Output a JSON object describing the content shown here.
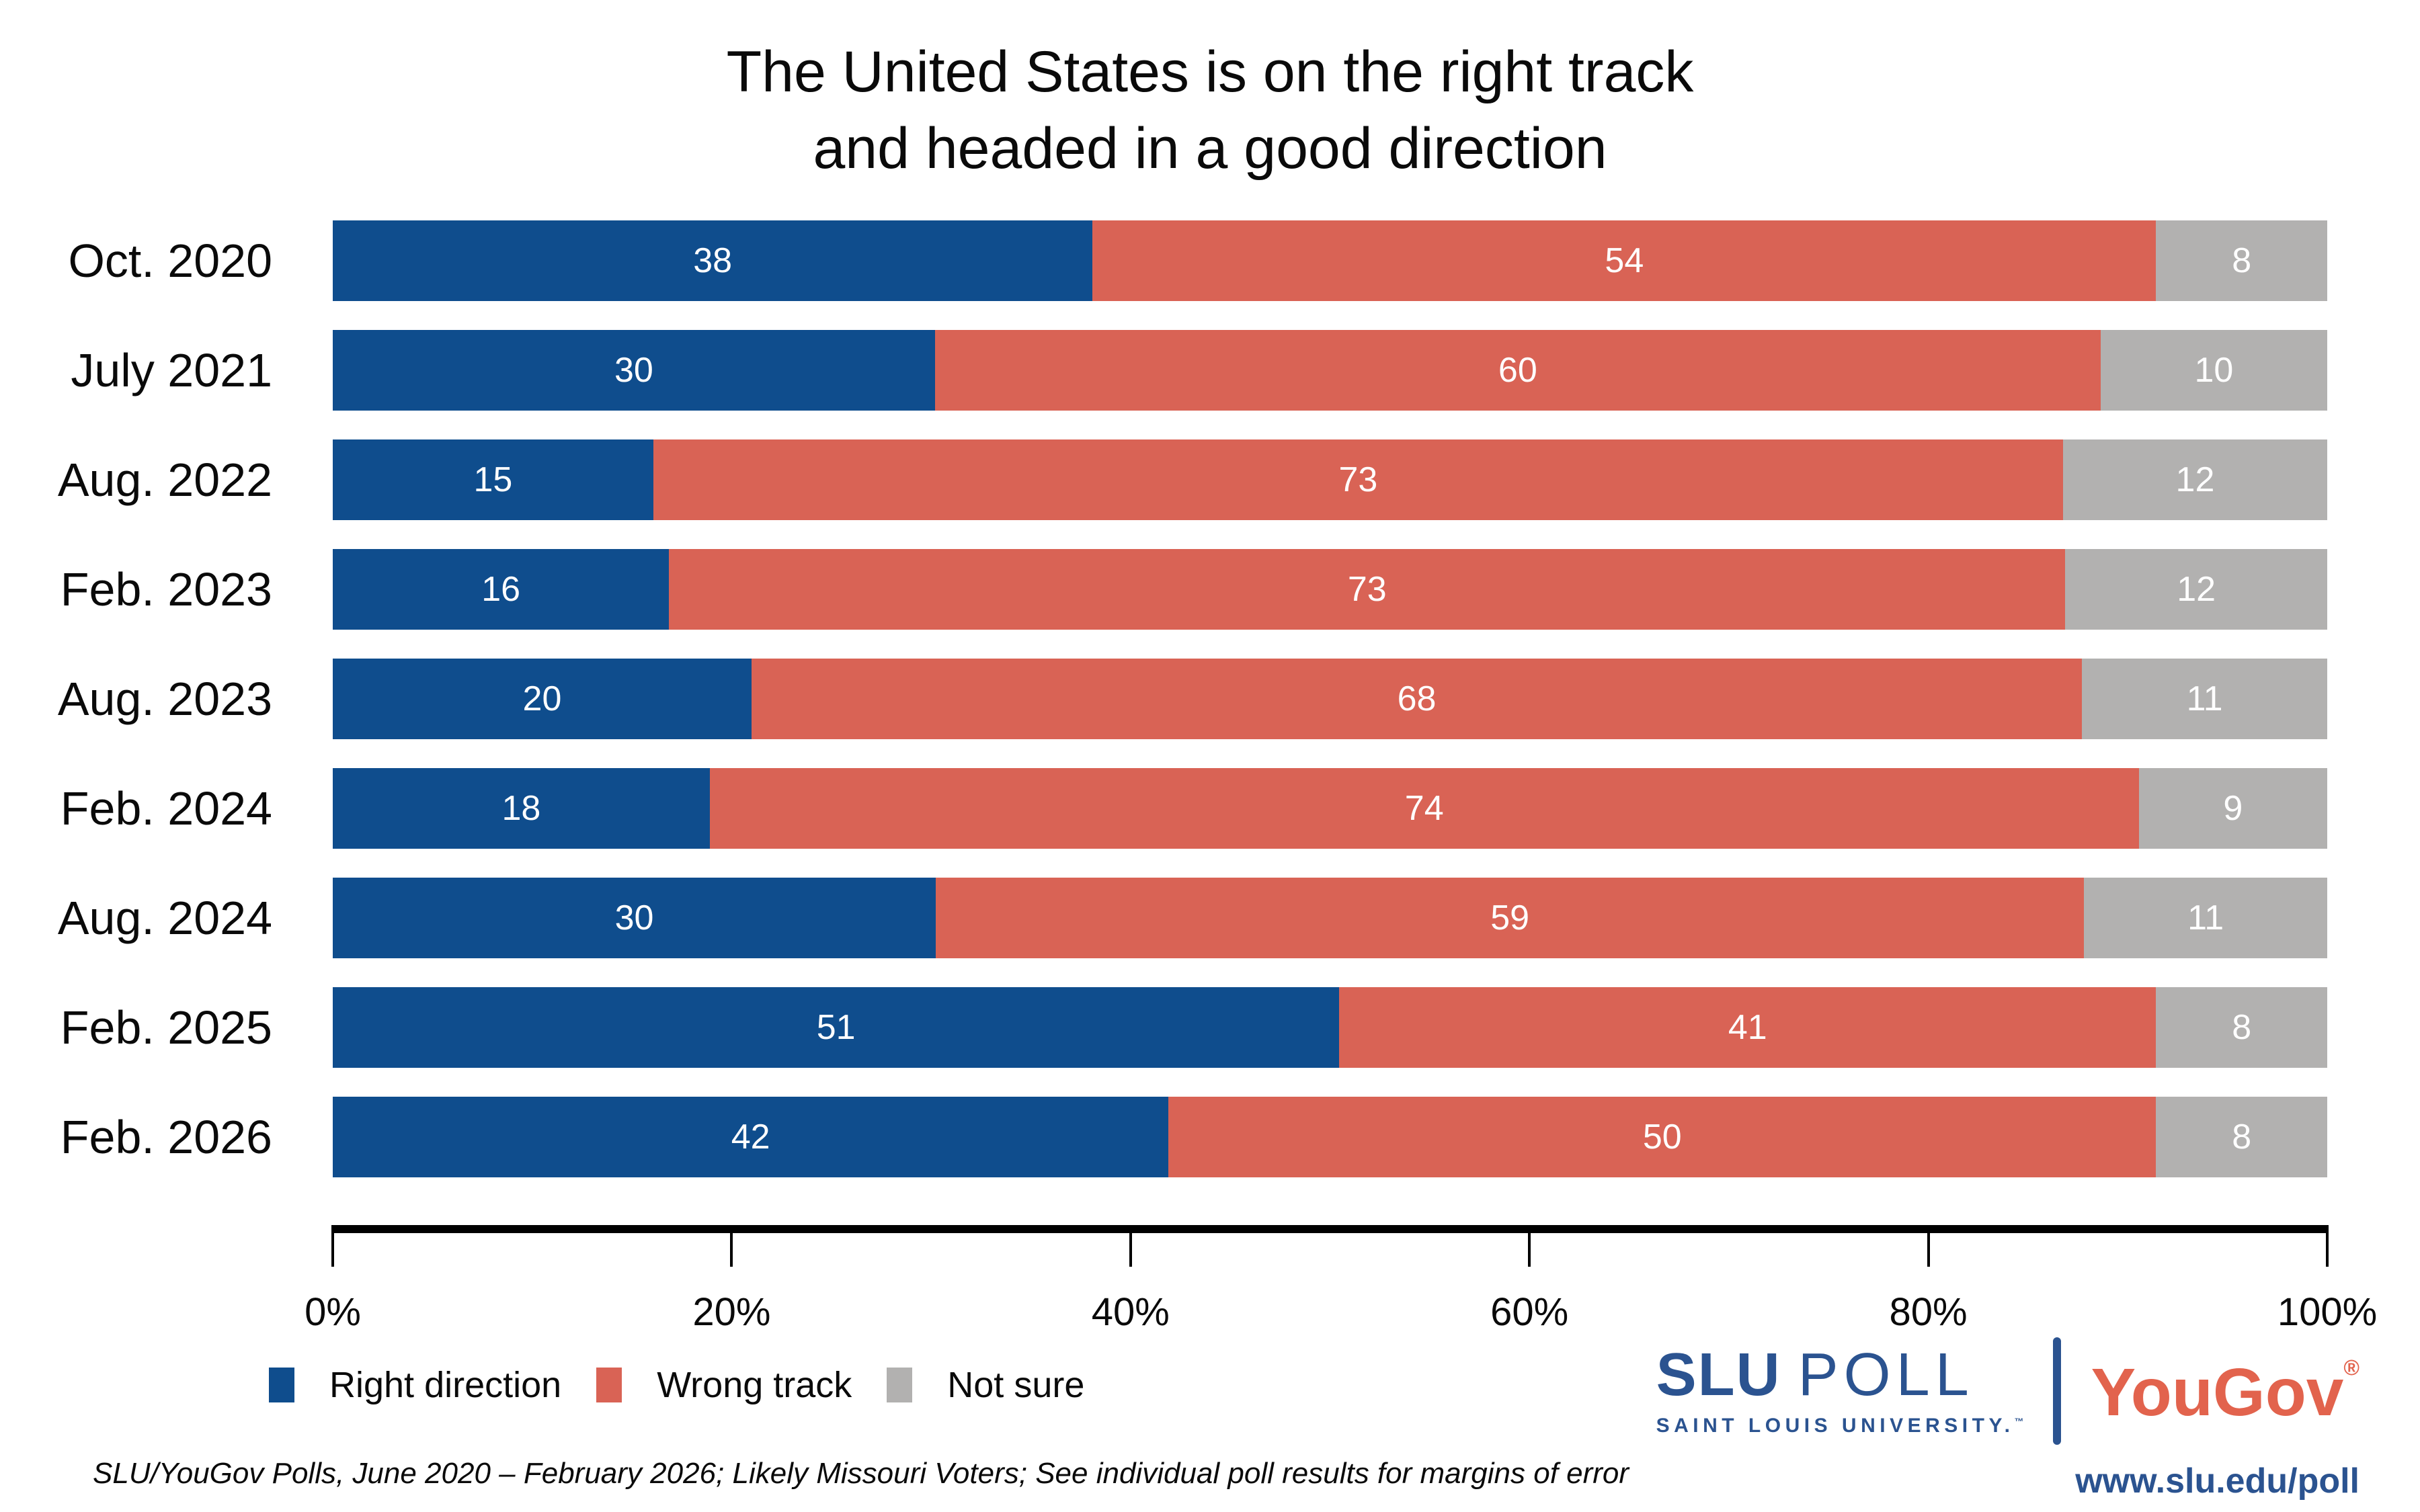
{
  "title": {
    "line1": "The United States is on the right track",
    "line2": "and headed in a good direction"
  },
  "chart_data": {
    "type": "bar",
    "stacked": true,
    "orientation": "horizontal",
    "title": "The United States is on the right track and headed in a good direction",
    "categories": [
      "Oct. 2020",
      "July 2021",
      "Aug. 2022",
      "Feb. 2023",
      "Aug. 2023",
      "Feb. 2024",
      "Aug. 2024",
      "Feb. 2025",
      "Feb. 2026"
    ],
    "series": [
      {
        "name": "Right direction",
        "color": "#0F4D8D",
        "values": [
          38,
          30,
          15,
          16,
          20,
          18,
          30,
          51,
          42
        ]
      },
      {
        "name": "Wrong track",
        "color": "#D96355",
        "values": [
          54,
          60,
          73,
          73,
          68,
          74,
          59,
          41,
          50
        ]
      },
      {
        "name": "Not sure",
        "color": "#B2B1B0",
        "values": [
          8,
          10,
          12,
          12,
          11,
          9,
          11,
          8,
          8
        ]
      }
    ],
    "xlim": [
      0,
      100
    ],
    "x_tick_labels": [
      "0%",
      "20%",
      "40%",
      "60%",
      "80%",
      "100%"
    ],
    "grid": false,
    "legend_position": "bottom-left",
    "value_labels": "white, centered in each segment"
  },
  "footer": {
    "source_note": "SLU/YouGov Polls, June 2020 – February 2026; Likely Missouri Voters; See individual poll results for margins of error"
  },
  "branding": {
    "slu": "SLU",
    "poll": "POLL",
    "slu_university": "SAINT LOUIS UNIVERSITY.",
    "trademark": "™",
    "yougov": "YouGov",
    "registered": "®",
    "url": "www.slu.edu/poll",
    "slu_blue": "#2B5390",
    "yougov_red": "#E2634D"
  }
}
